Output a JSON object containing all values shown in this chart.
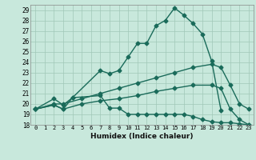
{
  "xlabel": "Humidex (Indice chaleur)",
  "ylabel": "",
  "xlim": [
    -0.5,
    23.5
  ],
  "ylim": [
    18,
    29.5
  ],
  "yticks": [
    18,
    19,
    20,
    21,
    22,
    23,
    24,
    25,
    26,
    27,
    28,
    29
  ],
  "xticks": [
    0,
    1,
    2,
    3,
    4,
    5,
    6,
    7,
    8,
    9,
    10,
    11,
    12,
    13,
    14,
    15,
    16,
    17,
    18,
    19,
    20,
    21,
    22,
    23
  ],
  "background_color": "#c8e8dc",
  "grid_color": "#a0c8b8",
  "line_color": "#1a6b5a",
  "line_width": 1.0,
  "marker": "D",
  "marker_size": 2.5,
  "lines": [
    {
      "x": [
        0,
        2,
        3,
        4,
        7,
        8,
        9,
        10,
        11,
        12,
        13,
        14,
        15,
        16,
        17,
        18,
        19,
        20
      ],
      "y": [
        19.5,
        20.5,
        19.9,
        20.6,
        23.2,
        22.9,
        23.2,
        24.5,
        25.8,
        25.8,
        27.5,
        28.0,
        29.2,
        28.5,
        27.7,
        26.7,
        24.1,
        19.4
      ]
    },
    {
      "x": [
        0,
        2,
        3,
        4,
        7,
        8,
        9,
        10,
        11,
        12,
        13,
        14,
        15,
        16,
        17,
        18,
        19,
        20,
        21,
        22,
        23
      ],
      "y": [
        19.5,
        19.9,
        19.5,
        20.6,
        20.8,
        19.6,
        19.6,
        19.0,
        19.0,
        19.0,
        19.0,
        19.0,
        19.0,
        19.0,
        18.8,
        18.5,
        18.3,
        18.2,
        18.2,
        18.1,
        18.0
      ]
    },
    {
      "x": [
        0,
        2,
        3,
        5,
        7,
        9,
        11,
        13,
        15,
        17,
        19,
        20,
        21,
        22,
        23
      ],
      "y": [
        19.5,
        20.0,
        20.0,
        20.5,
        21.0,
        21.5,
        22.0,
        22.5,
        23.0,
        23.5,
        23.8,
        23.5,
        21.8,
        20.0,
        19.5
      ]
    },
    {
      "x": [
        0,
        2,
        3,
        5,
        7,
        9,
        11,
        13,
        15,
        17,
        19,
        20,
        21,
        22,
        23
      ],
      "y": [
        19.5,
        19.9,
        19.5,
        20.0,
        20.3,
        20.5,
        20.8,
        21.2,
        21.5,
        21.8,
        21.8,
        21.5,
        19.5,
        18.5,
        18.0
      ]
    }
  ]
}
